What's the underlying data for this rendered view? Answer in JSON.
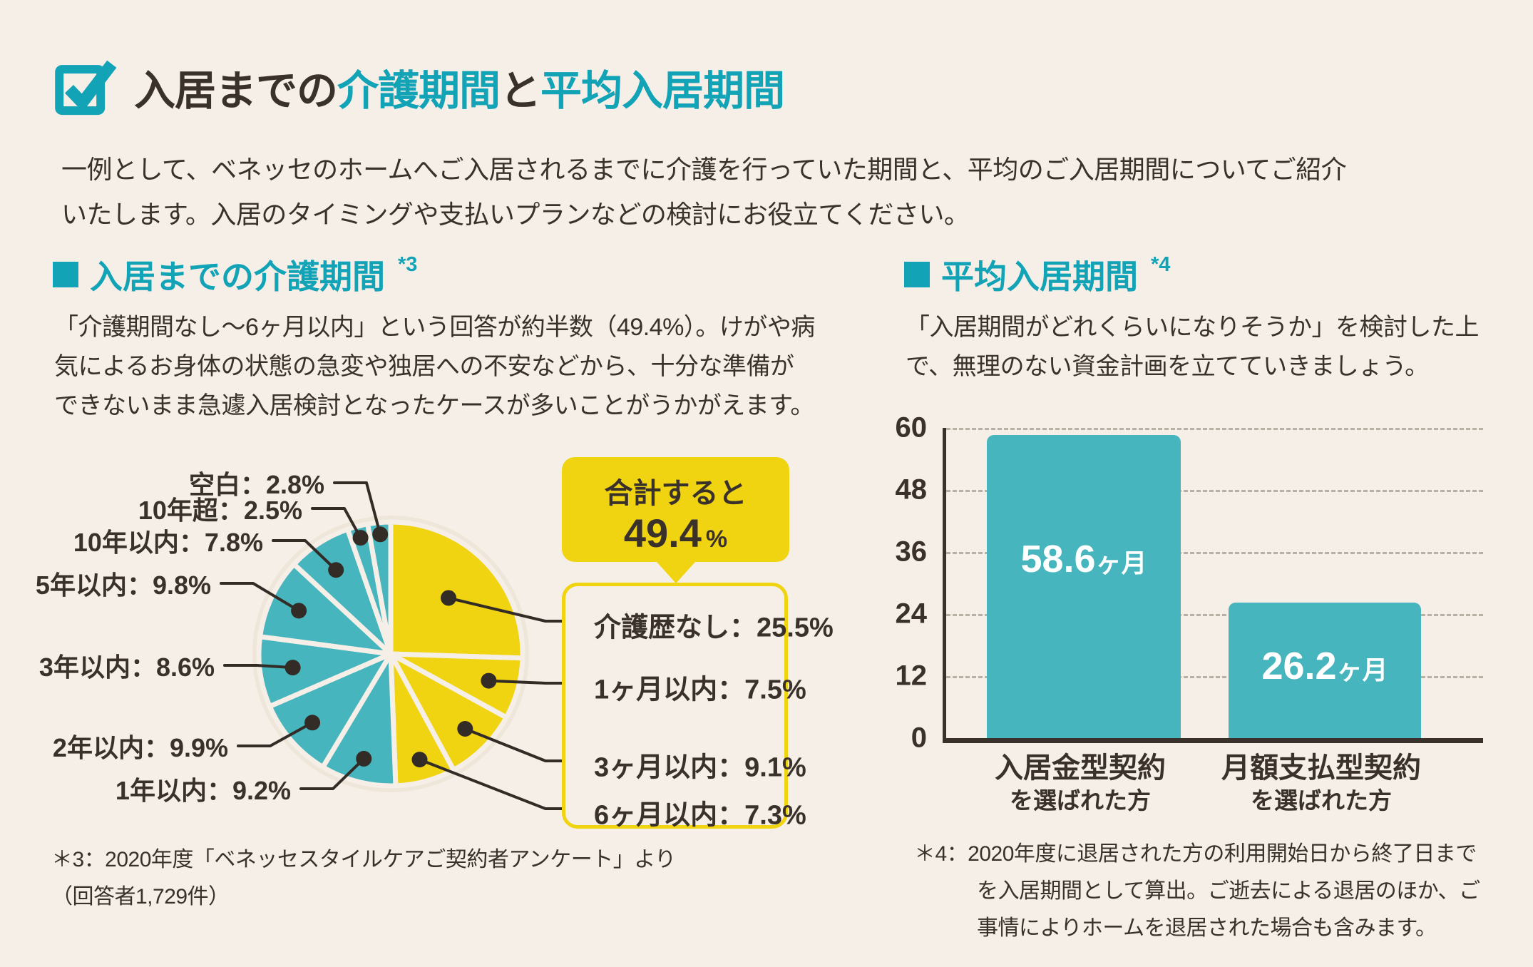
{
  "colors": {
    "background": "#f5efe8",
    "text": "#3a312b",
    "accent_teal": "#12a3b6",
    "chart_teal": "#46b5bd",
    "accent_yellow": "#f1d411",
    "grid": "#b9b0a5",
    "bar_value_text": "#ffffff"
  },
  "icons": {
    "header": "checkbox-check-icon",
    "section_marker": "square-bullet-icon"
  },
  "header": {
    "title_parts": [
      {
        "text": "入居までの",
        "color": "dark"
      },
      {
        "text": "介護期間",
        "color": "teal"
      },
      {
        "text": "と",
        "color": "dark"
      },
      {
        "text": "平均入居期間",
        "color": "teal"
      }
    ],
    "intro_lines": [
      "一例として、ベネッセのホームへご入居されるまでに介護を行っていた期間と、平均のご入居期間についてご紹介",
      "いたします。入居のタイミングや支払いプランなどの検討にお役立てください。"
    ]
  },
  "care_section": {
    "heading": "入居までの介護期間",
    "heading_note": "*3",
    "description_lines": [
      "「介護期間なし〜6ヶ月以内」という回答が約半数（49.4%）。けがや病",
      "気によるお身体の状態の急変や独居への不安などから、十分な準備が",
      "できないまま急遽入居検討となったケースが多いことがうかがえます。"
    ],
    "callout": {
      "label": "合計すると",
      "value": "49.4",
      "unit": "%"
    },
    "footnote_lines": [
      "＊3：2020年度「ベネッセスタイルケアご契約者アンケート」より",
      "（回答者1,729件）"
    ]
  },
  "stay_section": {
    "heading": "平均入居期間",
    "heading_note": "*4",
    "description_lines": [
      "「入居期間がどれくらいになりそうか」を検討した上",
      "で、無理のない資金計画を立てていきましょう。"
    ],
    "footnote_lines": [
      "＊4：2020年度に退居された方の利用開始日から終了日まで",
      "を入居期間として算出。ご逝去による退居のほか、ご",
      "事情によりホームを退居された場合も含みます。"
    ]
  },
  "chart_data": [
    {
      "type": "pie",
      "title": "入居までの介護期間",
      "unit": "%",
      "start_angle_deg": 0,
      "direction": "clockwise",
      "slices": [
        {
          "label": "介護歴なし",
          "value": 25.5,
          "group": "yellow"
        },
        {
          "label": "1ヶ月以内",
          "value": 7.5,
          "group": "yellow"
        },
        {
          "label": "3ヶ月以内",
          "value": 9.1,
          "group": "yellow"
        },
        {
          "label": "6ヶ月以内",
          "value": 7.3,
          "group": "yellow"
        },
        {
          "label": "1年以内",
          "value": 9.2,
          "group": "teal"
        },
        {
          "label": "2年以内",
          "value": 9.9,
          "group": "teal"
        },
        {
          "label": "3年以内",
          "value": 8.6,
          "group": "teal"
        },
        {
          "label": "5年以内",
          "value": 9.8,
          "group": "teal"
        },
        {
          "label": "10年以内",
          "value": 7.8,
          "group": "teal"
        },
        {
          "label": "10年超",
          "value": 2.5,
          "group": "teal"
        },
        {
          "label": "空白",
          "value": 2.8,
          "group": "teal"
        }
      ],
      "highlight_total": {
        "label": "合計すると",
        "value": 49.4,
        "unit": "%"
      }
    },
    {
      "type": "bar",
      "title": "平均入居期間",
      "categories": [
        {
          "line1": "入居金型契約",
          "line2": "を選ばれた方"
        },
        {
          "line1": "月額支払型契約",
          "line2": "を選ばれた方"
        }
      ],
      "values": [
        58.6,
        26.2
      ],
      "unit": "ヶ月",
      "ylim": [
        0,
        60
      ],
      "yticks": [
        0,
        12,
        24,
        36,
        48,
        60
      ],
      "grid": "dashed",
      "legend": null
    }
  ]
}
